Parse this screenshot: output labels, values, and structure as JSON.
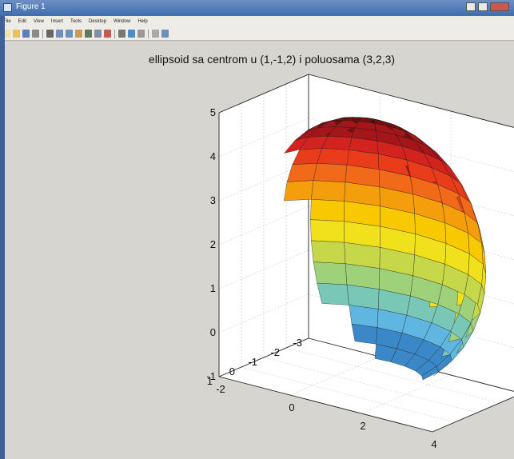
{
  "window": {
    "title": "Figure 1"
  },
  "menu": [
    "File",
    "Edit",
    "View",
    "Insert",
    "Tools",
    "Desktop",
    "Window",
    "Help"
  ],
  "toolbar": [
    {
      "icon": "new-figure-icon",
      "color": "#f2e3a0"
    },
    {
      "icon": "open-file-icon",
      "color": "#e7c25a"
    },
    {
      "icon": "save-icon",
      "color": "#5a7fbf"
    },
    {
      "icon": "print-icon",
      "color": "#8a8a8a"
    },
    {
      "icon": "edit-plot-icon",
      "color": "#666666"
    },
    {
      "icon": "zoom-in-icon",
      "color": "#6f8fbf"
    },
    {
      "icon": "zoom-out-icon",
      "color": "#6f8fbf"
    },
    {
      "icon": "pan-icon",
      "color": "#c89b5a"
    },
    {
      "icon": "rotate-3d-icon",
      "color": "#5d7a5a"
    },
    {
      "icon": "data-cursor-icon",
      "color": "#7f8fa6"
    },
    {
      "icon": "brush-icon",
      "color": "#c25b4f"
    },
    {
      "icon": "link-plot-icon",
      "color": "#777777"
    },
    {
      "icon": "insert-colorbar-icon",
      "color": "#4f8bc9"
    },
    {
      "icon": "insert-legend-icon",
      "color": "#999999"
    },
    {
      "icon": "hide-plot-tools-icon",
      "color": "#aaaaaa"
    },
    {
      "icon": "show-plot-tools-icon",
      "color": "#6f8fbf"
    }
  ],
  "colors": {
    "bands": [
      "#7a0e0e",
      "#a5161a",
      "#d2231f",
      "#e83c1a",
      "#f06a1a",
      "#f59e0c",
      "#f8c800",
      "#f1e11c",
      "#c6d74a",
      "#9ed17a",
      "#79c7b7",
      "#5fb6e0",
      "#3b88c9",
      "#24589c"
    ],
    "figure_bg": "#d6d5d0"
  },
  "chart_data": {
    "type": "surface",
    "title": "ellipsoid sa centrom u (1,-1,2) i poluosama (3,2,3)",
    "center": [
      1,
      -1,
      2
    ],
    "semi_axes": [
      3,
      2,
      3
    ],
    "xlim": [
      -2,
      4
    ],
    "ylim": [
      -3,
      1
    ],
    "zlim": [
      -1,
      5
    ],
    "x_ticks": [
      "-2",
      "0",
      "2",
      "4"
    ],
    "y_ticks": [
      "-3",
      "-2",
      "-1",
      "0",
      "1"
    ],
    "z_ticks": [
      "-1",
      "0",
      "1",
      "2",
      "3",
      "4",
      "5"
    ],
    "colormap": "jet",
    "grid": true,
    "view": "3d"
  }
}
